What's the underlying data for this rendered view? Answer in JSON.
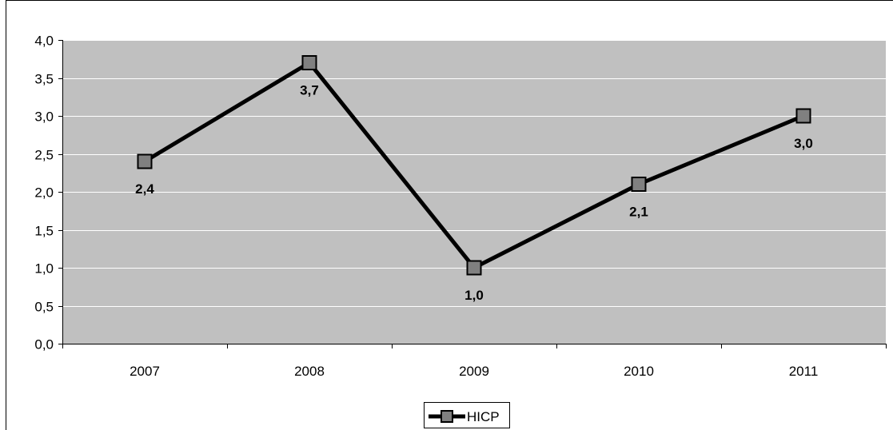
{
  "chart_data": {
    "type": "line",
    "categories": [
      "2007",
      "2008",
      "2009",
      "2010",
      "2011"
    ],
    "series": [
      {
        "name": "HICP",
        "values": [
          2.4,
          3.7,
          1.0,
          2.1,
          3.0
        ]
      }
    ],
    "data_labels": [
      "2,4",
      "3,7",
      "1,0",
      "2,1",
      "3,0"
    ],
    "data_label_positions": [
      "below",
      "below",
      "below",
      "below",
      "below"
    ],
    "y_ticks": [
      "0,0",
      "0,5",
      "1,0",
      "1,5",
      "2,0",
      "2,5",
      "3,0",
      "3,5",
      "4,0"
    ],
    "ylim": [
      0,
      4
    ],
    "y_step": 0.5,
    "grid": true,
    "legend_position": "bottom",
    "title": "",
    "xlabel": "",
    "ylabel": ""
  },
  "colors": {
    "plot_background": "#c0c0c0",
    "gridline": "#ffffff",
    "line": "#000000",
    "marker_fill": "#808080",
    "marker_stroke": "#000000",
    "frame": "#000000"
  }
}
